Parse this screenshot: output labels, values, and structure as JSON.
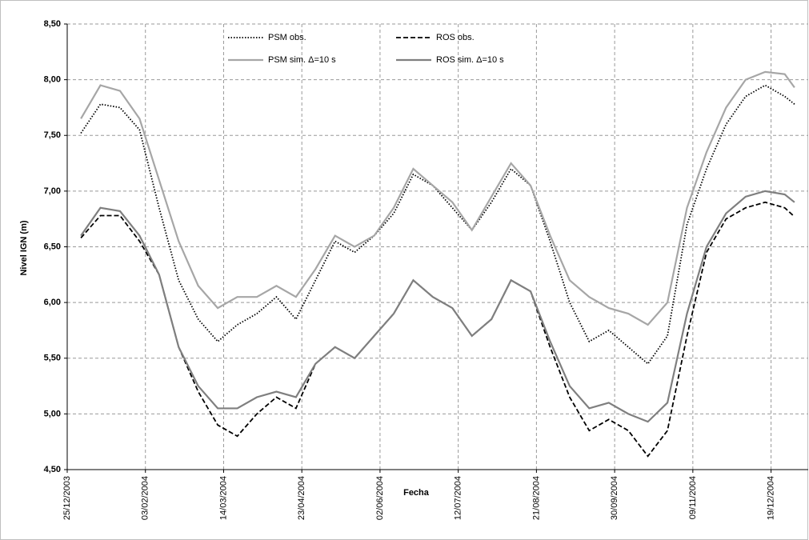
{
  "chart_data": {
    "type": "line",
    "xlabel": "Fecha",
    "ylabel": "Nivel IGN (m)",
    "x": [
      "2004-01-01",
      "2004-01-11",
      "2004-01-21",
      "2004-01-31",
      "2004-02-10",
      "2004-02-20",
      "2004-03-01",
      "2004-03-11",
      "2004-03-21",
      "2004-03-31",
      "2004-04-10",
      "2004-04-20",
      "2004-04-30",
      "2004-05-10",
      "2004-05-20",
      "2004-05-30",
      "2004-06-09",
      "2004-06-19",
      "2004-06-29",
      "2004-07-09",
      "2004-07-19",
      "2004-07-29",
      "2004-08-08",
      "2004-08-18",
      "2004-08-28",
      "2004-09-07",
      "2004-09-17",
      "2004-09-27",
      "2004-10-07",
      "2004-10-17",
      "2004-10-27",
      "2004-11-06",
      "2004-11-16",
      "2004-11-26",
      "2004-12-06",
      "2004-12-16",
      "2004-12-26",
      "2004-12-31"
    ],
    "series": [
      {
        "name": "PSM obs.",
        "color": "#000000",
        "dash": "dotted",
        "values": [
          7.52,
          7.78,
          7.75,
          7.55,
          6.85,
          6.2,
          5.85,
          5.65,
          5.8,
          5.9,
          6.05,
          5.85,
          6.2,
          6.55,
          6.45,
          6.6,
          6.8,
          7.15,
          7.05,
          6.85,
          6.65,
          6.9,
          7.2,
          7.05,
          6.55,
          6.0,
          5.65,
          5.75,
          5.6,
          5.45,
          5.7,
          6.7,
          7.2,
          7.6,
          7.85,
          7.95,
          7.85,
          7.78
        ]
      },
      {
        "name": "ROS obs.",
        "color": "#000000",
        "dash": "dashed",
        "values": [
          6.58,
          6.78,
          6.78,
          6.55,
          6.25,
          5.6,
          5.2,
          4.9,
          4.8,
          5.0,
          5.15,
          5.05,
          5.45,
          5.6,
          5.5,
          5.7,
          5.9,
          6.2,
          6.05,
          5.95,
          5.7,
          5.85,
          6.2,
          6.1,
          5.6,
          5.15,
          4.85,
          4.95,
          4.85,
          4.62,
          4.85,
          5.7,
          6.45,
          6.75,
          6.85,
          6.9,
          6.85,
          6.77
        ]
      },
      {
        "name": "PSM sim.  Δ=10 s",
        "color": "#a6a6a6",
        "dash": "solid",
        "values": [
          7.65,
          7.95,
          7.9,
          7.65,
          7.1,
          6.55,
          6.15,
          5.95,
          6.05,
          6.05,
          6.15,
          6.05,
          6.3,
          6.6,
          6.5,
          6.6,
          6.85,
          7.2,
          7.05,
          6.9,
          6.65,
          6.95,
          7.25,
          7.05,
          6.6,
          6.2,
          6.05,
          5.95,
          5.9,
          5.8,
          6.0,
          6.85,
          7.35,
          7.75,
          8.0,
          8.07,
          8.05,
          7.93
        ]
      },
      {
        "name": "ROS sim.  Δ=10 s",
        "color": "#7f7f7f",
        "dash": "solid",
        "values": [
          6.6,
          6.85,
          6.82,
          6.6,
          6.25,
          5.6,
          5.25,
          5.05,
          5.05,
          5.15,
          5.2,
          5.15,
          5.45,
          5.6,
          5.5,
          5.7,
          5.9,
          6.2,
          6.05,
          5.95,
          5.7,
          5.85,
          6.2,
          6.1,
          5.65,
          5.25,
          5.05,
          5.1,
          5.0,
          4.93,
          5.1,
          5.9,
          6.5,
          6.8,
          6.95,
          7.0,
          6.97,
          6.9
        ]
      }
    ],
    "xlim": [
      "2003-12-25",
      "2005-01-07"
    ],
    "xticks": [
      {
        "value": "2003-12-25",
        "label": "25/12/2003"
      },
      {
        "value": "2004-02-03",
        "label": "03/02/2004"
      },
      {
        "value": "2004-03-14",
        "label": "14/03/2004"
      },
      {
        "value": "2004-04-23",
        "label": "23/04/2004"
      },
      {
        "value": "2004-06-02",
        "label": "02/06/2004"
      },
      {
        "value": "2004-07-12",
        "label": "12/07/2004"
      },
      {
        "value": "2004-08-21",
        "label": "21/08/2004"
      },
      {
        "value": "2004-09-30",
        "label": "30/09/2004"
      },
      {
        "value": "2004-11-09",
        "label": "09/11/2004"
      },
      {
        "value": "2004-12-19",
        "label": "19/12/2004"
      }
    ],
    "ylim": [
      4.5,
      8.5
    ],
    "yticks": [
      {
        "value": 4.5,
        "label": "4,50"
      },
      {
        "value": 5,
        "label": "5,00"
      },
      {
        "value": 5.5,
        "label": "5,50"
      },
      {
        "value": 6,
        "label": "6,00"
      },
      {
        "value": 6.5,
        "label": "6,50"
      },
      {
        "value": 7,
        "label": "7,00"
      },
      {
        "value": 7.5,
        "label": "7,50"
      },
      {
        "value": 8,
        "label": "8,00"
      },
      {
        "value": 8.5,
        "label": "8,50"
      }
    ],
    "grid": true
  }
}
